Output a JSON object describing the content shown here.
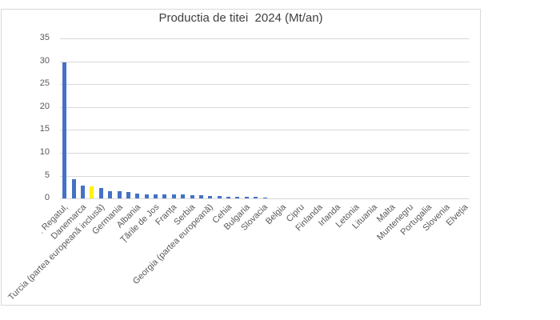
{
  "title": "Productia de titei  2024 (Mt/an)",
  "chart_data": {
    "type": "bar",
    "title": "Productia de titei  2024 (Mt/an)",
    "xlabel": "",
    "ylabel": "",
    "ylim": [
      0,
      35
    ],
    "yticks": [
      0,
      5,
      10,
      15,
      20,
      25,
      30,
      35
    ],
    "grid": true,
    "legend": "none",
    "n_categories": 45,
    "x_tick_interval": 2,
    "x_tick_labels": [
      ". Regatul,",
      "Danemarca",
      "Turcia (partea europeană inclusă)",
      "Germania",
      "Albania",
      "Țările de Jos",
      "Franța",
      "Serbia",
      "Georgia (partea europeană)",
      "Cehia",
      "Bulgaria",
      "Slovacia",
      "Belgia",
      "Cipru",
      "Finlanda",
      "Irlanda",
      "Letonia",
      "Lituania",
      "Malta",
      "Muntenegru",
      "Portugalia",
      "Slovenia",
      "Elveția"
    ],
    "values": [
      29.8,
      4.3,
      2.9,
      2.75,
      2.3,
      1.6,
      1.6,
      1.5,
      1.1,
      1.0,
      1.0,
      0.9,
      0.9,
      0.85,
      0.8,
      0.8,
      0.6,
      0.5,
      0.45,
      0.4,
      0.4,
      0.35,
      0.3,
      0,
      0,
      0,
      0,
      0,
      0,
      0,
      0,
      0,
      0,
      0,
      0,
      0,
      0,
      0,
      0,
      0,
      0,
      0,
      0,
      0,
      0
    ],
    "bar_color": "#4472C4",
    "highlight_index": 3,
    "highlight_color": "#FFF200",
    "gridline_color": "#D9D9D9",
    "axis_text_color": "#595959",
    "title_color": "#404040",
    "label_rotation": 45
  }
}
